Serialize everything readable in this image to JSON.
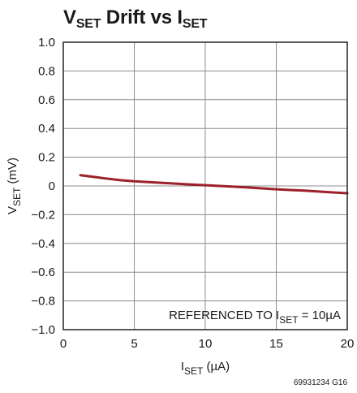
{
  "chart_data": {
    "type": "line",
    "title": {
      "main_a": "V",
      "sub_a": "SET",
      "mid": " Drift vs I",
      "sub_b": "SET"
    },
    "xlabel": {
      "main": "I",
      "sub": "SET",
      "unit": " (µA)"
    },
    "ylabel": {
      "main": "V",
      "sub": "SET",
      "unit": " (mV)"
    },
    "xlim": [
      0,
      20
    ],
    "ylim": [
      -1.0,
      1.0
    ],
    "x_ticks": [
      0,
      5,
      10,
      15,
      20
    ],
    "x_tick_labels": [
      "0",
      "5",
      "10",
      "15",
      "20"
    ],
    "y_ticks": [
      1.0,
      0.8,
      0.6,
      0.4,
      0.2,
      0,
      -0.2,
      -0.4,
      -0.6,
      -0.8,
      -1.0
    ],
    "y_tick_labels": [
      "1.0",
      "0.8",
      "0.6",
      "0.4",
      "0.2",
      "0",
      "−0.2",
      "−0.4",
      "−0.6",
      "−0.8",
      "−1.0"
    ],
    "grid_x": [
      5,
      10,
      15
    ],
    "grid_y": [
      0.8,
      0.6,
      0.4,
      0.2,
      0,
      -0.2,
      -0.4,
      -0.6,
      -0.8
    ],
    "series": [
      {
        "color": "#9b2029",
        "x": [
          1.2,
          2,
          3,
          4,
          5,
          6,
          7,
          8,
          9,
          10,
          11,
          12,
          13,
          14,
          15,
          16,
          17,
          18,
          19,
          20
        ],
        "y": [
          0.075,
          0.065,
          0.052,
          0.04,
          0.032,
          0.027,
          0.021,
          0.015,
          0.01,
          0.005,
          0.0,
          -0.005,
          -0.011,
          -0.017,
          -0.023,
          -0.028,
          -0.033,
          -0.039,
          -0.045,
          -0.051
        ]
      }
    ],
    "annotation": {
      "prefix": "REFERENCED TO I",
      "sub": "SET",
      "suffix": " = 10µA"
    },
    "figure_id": "69931234 G16",
    "grid": true
  }
}
